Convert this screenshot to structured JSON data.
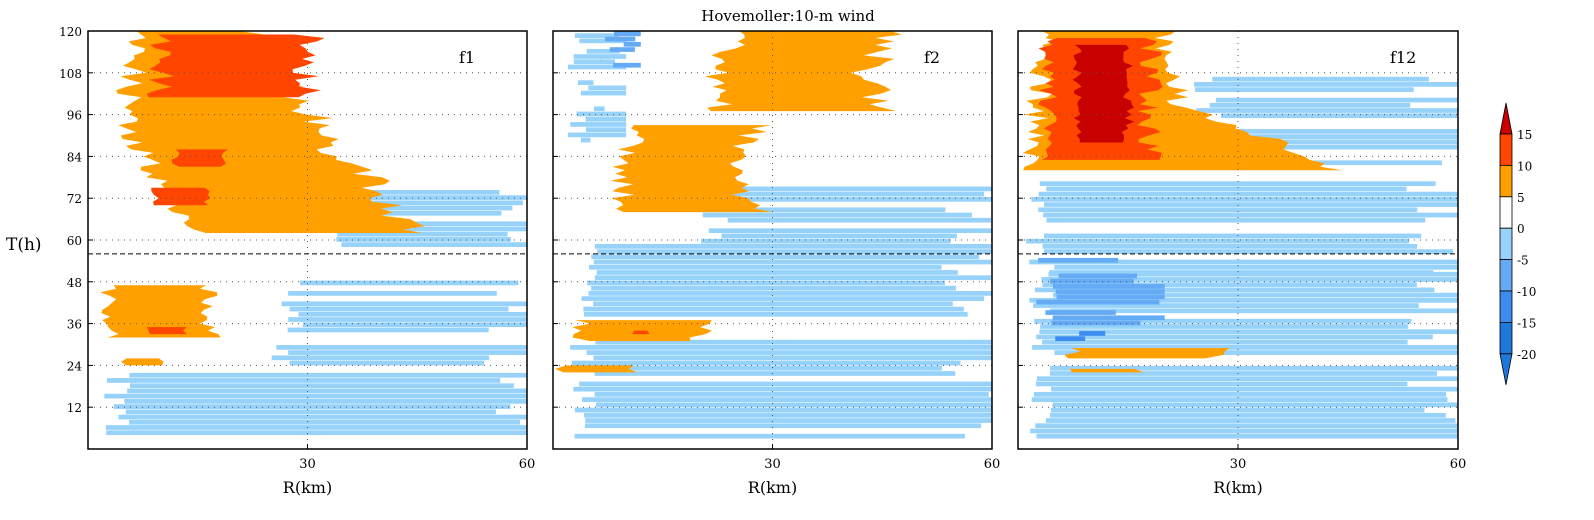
{
  "title": "Hovemoller:10-m wind",
  "ylabel": "T(h)",
  "colors": {
    "neg20": "#1e78dc",
    "neg15": "#3c8cf0",
    "neg10": "#64aaf5",
    "neg5": "#96d2fa",
    "pos5": "#ffa000",
    "pos10": "#ff4500",
    "pos15": "#c80000",
    "white": "#ffffff"
  },
  "chart_data": {
    "type": "heatmap",
    "title": "Hovemoller:10-m wind",
    "xlabel": "R(km)",
    "ylabel": "T(h)",
    "xlim": [
      0,
      60
    ],
    "ylim": [
      0,
      120
    ],
    "xticks": [
      30,
      60
    ],
    "yticks": [
      12,
      24,
      36,
      48,
      60,
      72,
      84,
      96,
      108,
      120
    ],
    "grid": true,
    "reference_line_t": 56,
    "colorbar": {
      "levels": [
        15,
        10,
        5,
        0,
        -5,
        -10,
        -15,
        -20
      ],
      "placement": "right"
    },
    "panels": [
      {
        "name": "f1",
        "pos_regions": [
          {
            "t0": 62,
            "t1": 120,
            "x": [
              [
                15,
                45
              ],
              [
                5,
                32
              ],
              [
                7,
                22
              ]
            ],
            "level": 5
          },
          {
            "t0": 101,
            "t1": 119,
            "x": [
              [
                10,
                30
              ]
            ],
            "level": 10
          },
          {
            "t0": 81,
            "t1": 86,
            "x": [
              [
                12,
                19
              ]
            ],
            "level": 10
          },
          {
            "t0": 70,
            "t1": 75,
            "x": [
              [
                9,
                16
              ]
            ],
            "level": 10
          },
          {
            "t0": 32,
            "t1": 47,
            "x": [
              [
                3,
                17
              ]
            ],
            "level": 5
          },
          {
            "t0": 33,
            "t1": 35,
            "x": [
              [
                8,
                13
              ]
            ],
            "level": 10
          },
          {
            "t0": 24,
            "t1": 26,
            "x": [
              [
                5,
                10
              ]
            ],
            "level": 5
          }
        ],
        "neg_bands": [
          {
            "t0": 4,
            "t1": 22,
            "x": [
              2,
              60
            ],
            "level": -5
          },
          {
            "t0": 24,
            "t1": 30,
            "x": [
              25,
              60
            ],
            "level": -5
          },
          {
            "t0": 32,
            "t1": 48,
            "x": [
              26,
              60
            ],
            "level": -5
          },
          {
            "t0": 58,
            "t1": 76,
            "x": [
              33,
              60
            ],
            "level": -5
          }
        ]
      },
      {
        "name": "f2",
        "pos_regions": [
          {
            "t0": 97,
            "t1": 120,
            "x": [
              [
                23,
                45
              ],
              [
                22,
                43
              ],
              [
                26,
                47
              ]
            ],
            "level": 5
          },
          {
            "t0": 68,
            "t1": 93,
            "x": [
              [
                10,
                28
              ],
              [
                9,
                24
              ],
              [
                12,
                28
              ]
            ],
            "level": 5
          },
          {
            "t0": 31,
            "t1": 37,
            "x": [
              [
                4,
                20
              ]
            ],
            "level": 5
          },
          {
            "t0": 22,
            "t1": 24,
            "x": [
              [
                1,
                11
              ]
            ],
            "level": 5
          },
          {
            "t0": 33,
            "t1": 34,
            "x": [
              [
                11,
                13
              ]
            ],
            "level": 10
          }
        ],
        "neg_bands": [
          {
            "t0": 3,
            "t1": 31,
            "x": [
              2,
              60
            ],
            "level": -5
          },
          {
            "t0": 38,
            "t1": 58,
            "x": [
              3,
              60
            ],
            "level": -5
          },
          {
            "t0": 59,
            "t1": 75,
            "x": [
              20,
              60
            ],
            "level": -5
          },
          {
            "t0": 88,
            "t1": 120,
            "x": [
              2,
              10
            ],
            "level": -5
          },
          {
            "t0": 108,
            "t1": 120,
            "x": [
              6,
              12
            ],
            "level": -10
          }
        ]
      },
      {
        "name": "f12",
        "pos_regions": [
          {
            "t0": 80,
            "t1": 120,
            "x": [
              [
                2,
                45
              ],
              [
                3,
                22
              ],
              [
                4,
                20
              ]
            ],
            "level": 5
          },
          {
            "t0": 83,
            "t1": 118,
            "x": [
              [
                4,
                18
              ]
            ],
            "level": 10
          },
          {
            "t0": 88,
            "t1": 116,
            "x": [
              [
                8,
                15
              ]
            ],
            "level": 15
          },
          {
            "t0": 26,
            "t1": 29,
            "x": [
              [
                7,
                27
              ]
            ],
            "level": 5
          },
          {
            "t0": 22,
            "t1": 23,
            "x": [
              [
                7,
                17
              ]
            ],
            "level": 5
          }
        ],
        "neg_bands": [
          {
            "t0": 3,
            "t1": 50,
            "x": [
              1,
              60
            ],
            "level": -5
          },
          {
            "t0": 50,
            "t1": 77,
            "x": [
              1,
              60
            ],
            "level": -5
          },
          {
            "t0": 80,
            "t1": 106,
            "x": [
              24,
              60
            ],
            "level": -5
          },
          {
            "t0": 34,
            "t1": 55,
            "x": [
              2,
              20
            ],
            "level": -10
          },
          {
            "t0": 31,
            "t1": 34,
            "x": [
              5,
              14
            ],
            "level": -15
          }
        ]
      }
    ]
  }
}
